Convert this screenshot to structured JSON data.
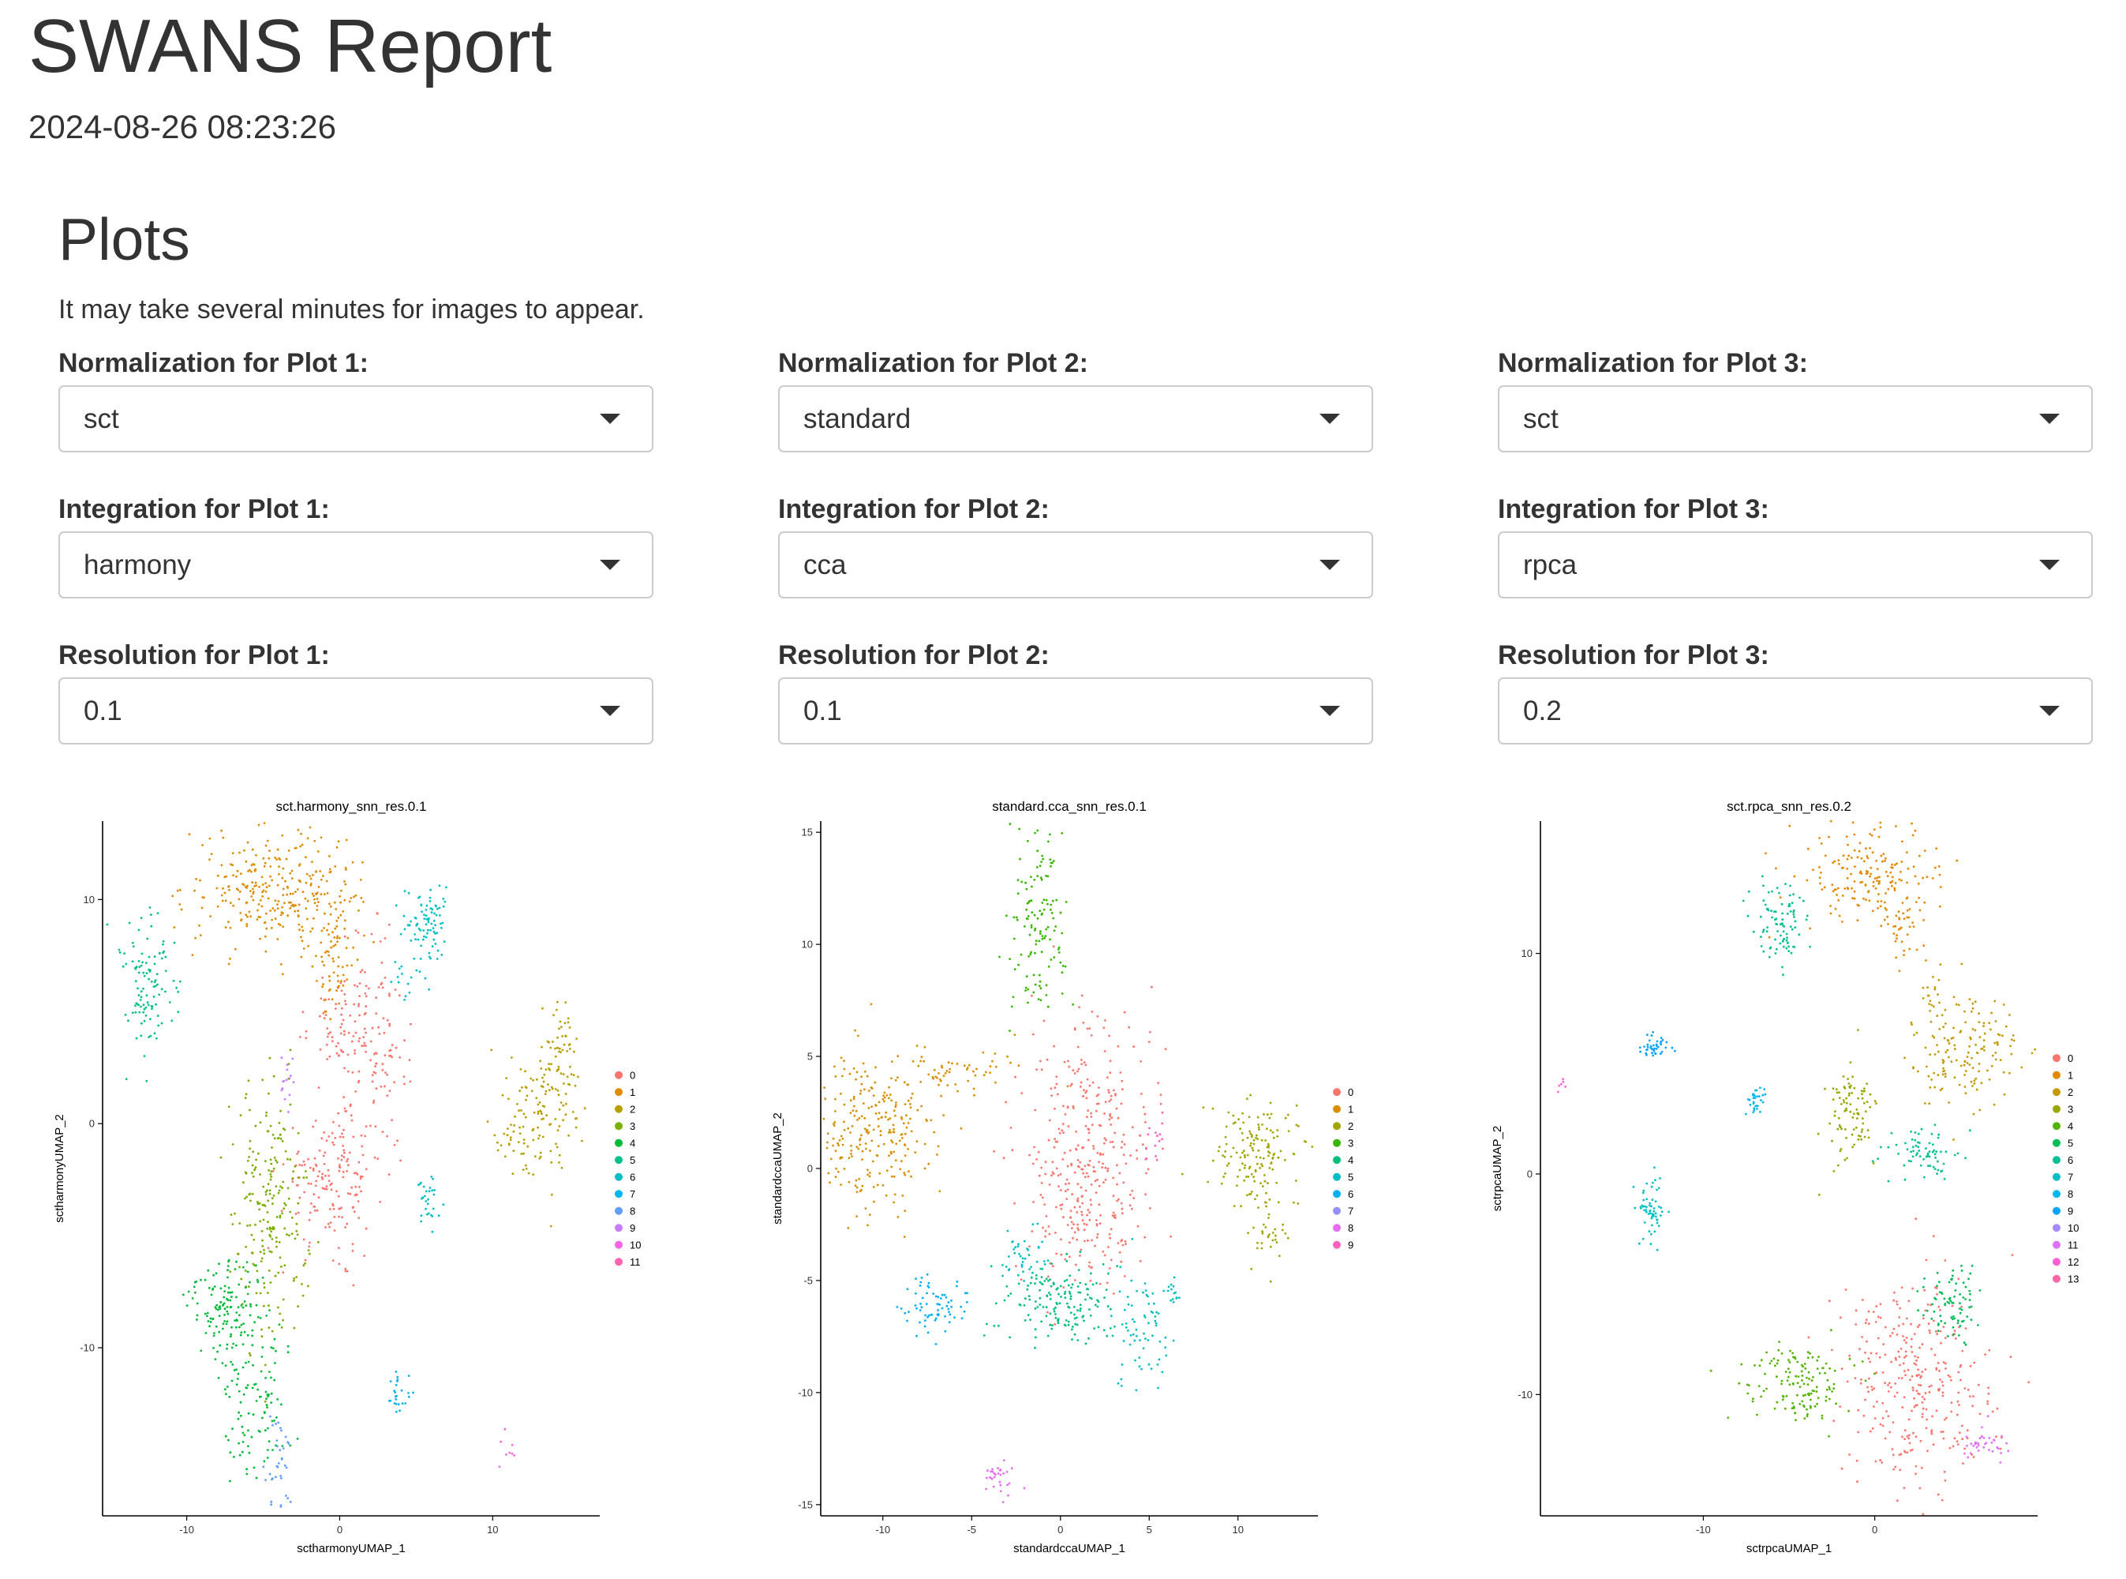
{
  "report": {
    "title": "SWANS Report",
    "timestamp": "2024-08-26 08:23:26"
  },
  "section": {
    "heading": "Plots",
    "note": "It may take several minutes for images to appear."
  },
  "controls": [
    {
      "normalization_label": "Normalization for Plot 1:",
      "normalization_value": "sct",
      "integration_label": "Integration for Plot 1:",
      "integration_value": "harmony",
      "resolution_label": "Resolution for Plot 1:",
      "resolution_value": "0.1"
    },
    {
      "normalization_label": "Normalization for Plot 2:",
      "normalization_value": "standard",
      "integration_label": "Integration for Plot 2:",
      "integration_value": "cca",
      "resolution_label": "Resolution for Plot 2:",
      "resolution_value": "0.1"
    },
    {
      "normalization_label": "Normalization for Plot 3:",
      "normalization_value": "sct",
      "integration_label": "Integration for Plot 3:",
      "integration_value": "rpca",
      "resolution_label": "Resolution for Plot 3:",
      "resolution_value": "0.2"
    }
  ],
  "palette": {
    "10": [
      "#F8766D",
      "#D89000",
      "#A3A500",
      "#39B600",
      "#00BF7D",
      "#00BFC4",
      "#00B0F6",
      "#9590FF",
      "#E76BF3",
      "#FF62BC"
    ],
    "12": [
      "#F8766D",
      "#DE8C00",
      "#B79F00",
      "#7CAE00",
      "#00BA38",
      "#00C08B",
      "#00BFC4",
      "#00B4F0",
      "#619CFF",
      "#C77CFF",
      "#F564E3",
      "#FF64B0"
    ],
    "14": [
      "#F8766D",
      "#E38900",
      "#C49A00",
      "#99A800",
      "#53B400",
      "#00BC56",
      "#00C094",
      "#00BFC4",
      "#00B6EB",
      "#06A4FF",
      "#A58AFF",
      "#DF70F8",
      "#FB61D7",
      "#FF66A8"
    ]
  },
  "chart_data": [
    {
      "type": "scatter",
      "title": "sct.harmony_snn_res.0.1",
      "xlabel": "sctharmonyUMAP_1",
      "ylabel": "sctharmonyUMAP_2",
      "xlim": [
        -15.5,
        17
      ],
      "ylim": [
        -17.5,
        13.5
      ],
      "xticks": [
        -10,
        0,
        10
      ],
      "yticks": [
        -10,
        0,
        10
      ],
      "legend_position": "right",
      "legend": [
        "0",
        "1",
        "2",
        "3",
        "4",
        "5",
        "6",
        "7",
        "8",
        "9",
        "10",
        "11"
      ],
      "clusters": [
        {
          "label": "0",
          "blobs": [
            {
              "x": -0.5,
              "y": -2.5,
              "sx": 1.6,
              "sy": 1.5,
              "n": 160
            },
            {
              "x": 2,
              "y": 3,
              "sx": 1.2,
              "sy": 2.5,
              "n": 130
            },
            {
              "x": 0,
              "y": 4.5,
              "sx": 1.5,
              "sy": 1.0,
              "n": 50
            }
          ]
        },
        {
          "label": "1",
          "blobs": [
            {
              "x": -5,
              "y": 10.5,
              "sx": 2.5,
              "sy": 1.3,
              "n": 230
            },
            {
              "x": -1,
              "y": 9.5,
              "sx": 1.5,
              "sy": 1.5,
              "n": 90
            },
            {
              "x": -0.3,
              "y": 7,
              "sx": 0.6,
              "sy": 1.0,
              "n": 40
            }
          ]
        },
        {
          "label": "2",
          "blobs": [
            {
              "x": 13.5,
              "y": 0.8,
              "sx": 1.2,
              "sy": 1.6,
              "n": 120
            },
            {
              "x": 14.5,
              "y": 3.5,
              "sx": 0.5,
              "sy": 1.0,
              "n": 40
            },
            {
              "x": 11.5,
              "y": -0.8,
              "sx": 0.6,
              "sy": 0.6,
              "n": 20
            }
          ]
        },
        {
          "label": "3",
          "blobs": [
            {
              "x": -4.5,
              "y": -4,
              "sx": 1.2,
              "sy": 2.8,
              "n": 220
            }
          ]
        },
        {
          "label": "4",
          "blobs": [
            {
              "x": -7.5,
              "y": -8.2,
              "sx": 1.3,
              "sy": 1.2,
              "n": 130
            },
            {
              "x": -5.5,
              "y": -12,
              "sx": 1.2,
              "sy": 2.0,
              "n": 110
            }
          ]
        },
        {
          "label": "5",
          "blobs": [
            {
              "x": -12.5,
              "y": 6.2,
              "sx": 1.0,
              "sy": 1.6,
              "n": 110
            }
          ]
        },
        {
          "label": "6",
          "blobs": [
            {
              "x": 5.8,
              "y": 9,
              "sx": 0.8,
              "sy": 0.8,
              "n": 80
            },
            {
              "x": 4.5,
              "y": 6.5,
              "sx": 0.6,
              "sy": 0.6,
              "n": 20
            },
            {
              "x": 5.8,
              "y": -3.5,
              "sx": 0.4,
              "sy": 0.6,
              "n": 30
            }
          ]
        },
        {
          "label": "7",
          "blobs": [
            {
              "x": 3.8,
              "y": -12,
              "sx": 0.4,
              "sy": 0.4,
              "n": 25
            }
          ]
        },
        {
          "label": "8",
          "blobs": [
            {
              "x": -4,
              "y": -15,
              "sx": 0.4,
              "sy": 1.2,
              "n": 35
            }
          ]
        },
        {
          "label": "9",
          "blobs": [
            {
              "x": -3.5,
              "y": 1.6,
              "sx": 0.3,
              "sy": 0.6,
              "n": 15
            }
          ]
        },
        {
          "label": "10",
          "blobs": [
            {
              "x": 11,
              "y": -14.5,
              "sx": 0.3,
              "sy": 0.3,
              "n": 8
            }
          ]
        },
        {
          "label": "11",
          "blobs": []
        }
      ]
    },
    {
      "type": "scatter",
      "title": "standard.cca_snn_res.0.1",
      "xlabel": "standardccaUMAP_1",
      "ylabel": "standardccaUMAP_2",
      "xlim": [
        -13.5,
        14.5
      ],
      "ylim": [
        -15.5,
        15.5
      ],
      "xticks": [
        -10,
        -5,
        0,
        5,
        10
      ],
      "yticks": [
        -15,
        -10,
        -5,
        0,
        5,
        10,
        15
      ],
      "legend_position": "right",
      "legend": [
        "0",
        "1",
        "2",
        "3",
        "4",
        "5",
        "6",
        "7",
        "8",
        "9"
      ],
      "clusters": [
        {
          "label": "0",
          "blobs": [
            {
              "x": 1.5,
              "y": 2,
              "sx": 1.8,
              "sy": 2.5,
              "n": 260
            },
            {
              "x": 1.5,
              "y": -2.5,
              "sx": 1.5,
              "sy": 1.6,
              "n": 120
            }
          ]
        },
        {
          "label": "1",
          "blobs": [
            {
              "x": -10.5,
              "y": 1.5,
              "sx": 1.8,
              "sy": 1.8,
              "n": 250
            },
            {
              "x": -6,
              "y": 4.5,
              "sx": 2.0,
              "sy": 0.6,
              "n": 60
            }
          ]
        },
        {
          "label": "2",
          "blobs": [
            {
              "x": 11,
              "y": 0.5,
              "sx": 1.2,
              "sy": 1.2,
              "n": 150
            },
            {
              "x": 11.8,
              "y": -3,
              "sx": 0.5,
              "sy": 0.8,
              "n": 30
            }
          ]
        },
        {
          "label": "3",
          "blobs": [
            {
              "x": -1.3,
              "y": 11,
              "sx": 0.8,
              "sy": 2.2,
              "n": 130
            }
          ]
        },
        {
          "label": "4",
          "blobs": [
            {
              "x": -0.2,
              "y": -6,
              "sx": 1.5,
              "sy": 1.0,
              "n": 160
            }
          ]
        },
        {
          "label": "5",
          "blobs": [
            {
              "x": 4.5,
              "y": -7.5,
              "sx": 0.8,
              "sy": 1.5,
              "n": 70
            },
            {
              "x": 6.5,
              "y": -5.5,
              "sx": 0.3,
              "sy": 0.3,
              "n": 15
            },
            {
              "x": -2,
              "y": -3.8,
              "sx": 0.7,
              "sy": 0.6,
              "n": 40
            }
          ]
        },
        {
          "label": "6",
          "blobs": [
            {
              "x": -7,
              "y": -6.2,
              "sx": 0.9,
              "sy": 0.6,
              "n": 70
            }
          ]
        },
        {
          "label": "7",
          "blobs": []
        },
        {
          "label": "8",
          "blobs": [
            {
              "x": -3.5,
              "y": -13.8,
              "sx": 0.5,
              "sy": 0.5,
              "n": 30
            }
          ]
        },
        {
          "label": "9",
          "blobs": [
            {
              "x": 5.3,
              "y": 1.2,
              "sx": 0.4,
              "sy": 0.6,
              "n": 15
            }
          ]
        }
      ]
    },
    {
      "type": "scatter",
      "title": "sct.rpca_snn_res.0.2",
      "xlabel": "sctrpcaUMAP_1",
      "ylabel": "sctrpcaUMAP_2",
      "xlim": [
        -19.5,
        9.5
      ],
      "ylim": [
        -15.5,
        16
      ],
      "xticks": [
        -10,
        0
      ],
      "yticks": [
        -10,
        0,
        10
      ],
      "legend_position": "right",
      "legend": [
        "0",
        "1",
        "2",
        "3",
        "4",
        "5",
        "6",
        "7",
        "8",
        "9",
        "10",
        "11",
        "12",
        "13"
      ],
      "clusters": [
        {
          "label": "0",
          "blobs": [
            {
              "x": 2.5,
              "y": -9.5,
              "sx": 2.3,
              "sy": 2.5,
              "n": 320
            }
          ]
        },
        {
          "label": "1",
          "blobs": [
            {
              "x": -0.5,
              "y": 13.5,
              "sx": 2.0,
              "sy": 1.3,
              "n": 180
            },
            {
              "x": 1.8,
              "y": 11.5,
              "sx": 0.8,
              "sy": 1.0,
              "n": 40
            }
          ]
        },
        {
          "label": "2",
          "blobs": [
            {
              "x": 5.5,
              "y": 5.5,
              "sx": 1.6,
              "sy": 1.2,
              "n": 150
            },
            {
              "x": 3.5,
              "y": 8,
              "sx": 0.3,
              "sy": 1.0,
              "n": 20
            }
          ]
        },
        {
          "label": "3",
          "blobs": [
            {
              "x": -1.5,
              "y": 2.5,
              "sx": 0.8,
              "sy": 1.2,
              "n": 90
            }
          ]
        },
        {
          "label": "4",
          "blobs": [
            {
              "x": -4.5,
              "y": -9.5,
              "sx": 1.5,
              "sy": 1.0,
              "n": 140
            }
          ]
        },
        {
          "label": "5",
          "blobs": [
            {
              "x": 4.5,
              "y": -5.8,
              "sx": 0.9,
              "sy": 0.8,
              "n": 80
            }
          ]
        },
        {
          "label": "6",
          "blobs": [
            {
              "x": -5.5,
              "y": 11.5,
              "sx": 0.8,
              "sy": 1.0,
              "n": 90
            },
            {
              "x": 2.5,
              "y": 1,
              "sx": 1.0,
              "sy": 0.6,
              "n": 70
            }
          ]
        },
        {
          "label": "7",
          "blobs": [
            {
              "x": -13,
              "y": -1.5,
              "sx": 0.5,
              "sy": 0.7,
              "n": 60
            }
          ]
        },
        {
          "label": "8",
          "blobs": [
            {
              "x": -7,
              "y": 3.3,
              "sx": 0.3,
              "sy": 0.4,
              "n": 30
            }
          ]
        },
        {
          "label": "9",
          "blobs": [
            {
              "x": -12.8,
              "y": 5.8,
              "sx": 0.4,
              "sy": 0.3,
              "n": 40
            }
          ]
        },
        {
          "label": "10",
          "blobs": []
        },
        {
          "label": "11",
          "blobs": [
            {
              "x": 6.5,
              "y": -12.2,
              "sx": 0.8,
              "sy": 0.4,
              "n": 35
            }
          ]
        },
        {
          "label": "12",
          "blobs": [
            {
              "x": -18.2,
              "y": 4,
              "sx": 0.2,
              "sy": 0.2,
              "n": 6
            }
          ]
        },
        {
          "label": "13",
          "blobs": []
        }
      ]
    }
  ]
}
